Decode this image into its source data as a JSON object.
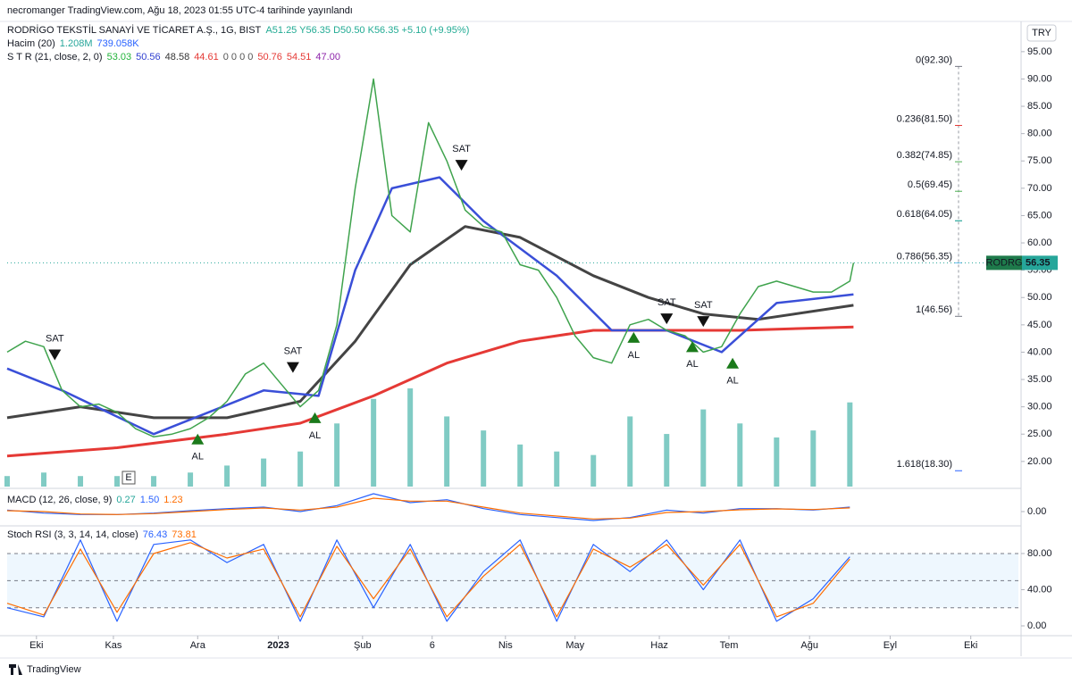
{
  "header": {
    "published": "necromanger TradingView.com, Ağu 18, 2023 01:55 UTC-4 tarihinde yayınlandı",
    "currency": "TRY",
    "footer": "TradingView",
    "event_marker": "E"
  },
  "legend": {
    "symbol": "RODRİGO TEKSTİL SANAYİ VE TİCARET A.Ş., 1G, BIST",
    "ohlc": "A51.25 Y56.35 D50.50 K56.35 +5.10 (+9.95%)",
    "volume_name": "Hacim (20)",
    "volume_values": [
      {
        "text": "1.208M",
        "color": "#26a69a"
      },
      {
        "text": "739.058K",
        "color": "#2962ff"
      }
    ],
    "str_name": "S T R (21, close, 2, 0)",
    "str_values": [
      {
        "text": "53.03",
        "color": "#22b33a"
      },
      {
        "text": "50.56",
        "color": "#2f3fd0"
      },
      {
        "text": "48.58",
        "color": "#333333"
      },
      {
        "text": "44.61",
        "color": "#e53935"
      },
      {
        "text": "0 0 0 0",
        "color": "#555555"
      },
      {
        "text": "50.76",
        "color": "#e53935"
      },
      {
        "text": "54.51",
        "color": "#e53935"
      },
      {
        "text": "47.00",
        "color": "#8e24aa"
      }
    ],
    "macd_name": "MACD (12, 26, close, 9)",
    "macd_values": [
      {
        "text": "0.27",
        "color": "#26a69a"
      },
      {
        "text": "1.50",
        "color": "#2962ff"
      },
      {
        "text": "1.23",
        "color": "#ff6d00"
      }
    ],
    "stoch_name": "Stoch RSI (3, 3, 14, 14, close)",
    "stoch_values": [
      {
        "text": "76.43",
        "color": "#2962ff"
      },
      {
        "text": "73.81",
        "color": "#ff6d00"
      }
    ]
  },
  "chart_data": [
    {
      "type": "line",
      "xlim": [
        0,
        276
      ],
      "ylim": [
        15.4,
        97.1
      ],
      "yticks": [
        {
          "value": 20,
          "label": "20.00"
        },
        {
          "value": 25,
          "label": "25.00"
        },
        {
          "value": 30,
          "label": "30.00"
        },
        {
          "value": 35,
          "label": "35.00"
        },
        {
          "value": 40,
          "label": "40.00"
        },
        {
          "value": 45,
          "label": "45.00"
        },
        {
          "value": 50,
          "label": "50.00"
        },
        {
          "value": 55,
          "label": "55.00"
        },
        {
          "value": 60,
          "label": "60.00"
        },
        {
          "value": 65,
          "label": "65.00"
        },
        {
          "value": 70,
          "label": "70.00"
        },
        {
          "value": 75,
          "label": "75.00"
        },
        {
          "value": 80,
          "label": "80.00"
        },
        {
          "value": 85,
          "label": "85.00"
        },
        {
          "value": 90,
          "label": "90.00"
        },
        {
          "value": 95,
          "label": "95.00"
        }
      ],
      "series": [
        {
          "color": "#e53935",
          "width": 3,
          "x": [
            0,
            30,
            60,
            80,
            100,
            120,
            140,
            160,
            180,
            200,
            231
          ],
          "values": [
            21,
            22.5,
            25,
            27,
            32,
            38,
            42,
            44,
            44,
            44,
            44.61
          ]
        },
        {
          "color": "#444444",
          "width": 3,
          "x": [
            0,
            20,
            40,
            60,
            80,
            95,
            110,
            125,
            140,
            160,
            175,
            190,
            205,
            231
          ],
          "values": [
            28,
            30,
            28,
            28,
            31,
            42,
            56,
            63,
            61,
            54,
            50,
            47,
            46,
            48.58
          ]
        },
        {
          "color": "#3a4fd8",
          "width": 2.5,
          "x": [
            0,
            15,
            40,
            70,
            85,
            95,
            105,
            118,
            130,
            150,
            165,
            180,
            195,
            210,
            231
          ],
          "values": [
            37,
            33,
            25,
            33,
            32,
            55,
            70,
            72,
            64,
            54,
            44,
            44,
            40,
            49,
            50.56
          ]
        },
        {
          "color": "#3fa34d",
          "width": 1.5,
          "x": [
            0,
            5,
            10,
            15,
            20,
            25,
            30,
            35,
            40,
            45,
            50,
            55,
            60,
            65,
            70,
            75,
            80,
            85,
            90,
            95,
            100,
            105,
            110,
            115,
            120,
            125,
            130,
            135,
            140,
            145,
            150,
            155,
            160,
            165,
            170,
            175,
            180,
            185,
            190,
            195,
            200,
            205,
            210,
            215,
            220,
            225,
            230,
            231
          ],
          "values": [
            40,
            42,
            41,
            33,
            30,
            30.5,
            29,
            26,
            24.5,
            25,
            26,
            28,
            31,
            36,
            38,
            34,
            30,
            33,
            45,
            70,
            90,
            65,
            62,
            82,
            75,
            66,
            63,
            62,
            56,
            55,
            50,
            43,
            39,
            38,
            45,
            46,
            44,
            43,
            40,
            41,
            47,
            52,
            53,
            52,
            51,
            51,
            53,
            56.35
          ]
        }
      ],
      "volume": {
        "color": "#80cbc4",
        "x": [
          0,
          10,
          20,
          30,
          40,
          50,
          60,
          70,
          80,
          90,
          100,
          110,
          120,
          130,
          140,
          150,
          160,
          170,
          180,
          190,
          200,
          210,
          220,
          230
        ],
        "values": [
          0.3,
          0.4,
          0.3,
          0.3,
          0.3,
          0.4,
          0.6,
          0.8,
          1.0,
          1.8,
          2.5,
          2.8,
          2.0,
          1.6,
          1.2,
          1.0,
          0.9,
          2.0,
          1.5,
          2.2,
          1.8,
          1.4,
          1.6,
          2.4
        ]
      },
      "fib": [
        {
          "label": "0(92.30)",
          "value": 92.3,
          "color": "#787b86"
        },
        {
          "label": "0.236(81.50)",
          "value": 81.5,
          "color": "#e53935"
        },
        {
          "label": "0.382(74.85)",
          "value": 74.85,
          "color": "#4caf50"
        },
        {
          "label": "0.5(69.45)",
          "value": 69.45,
          "color": "#4caf50"
        },
        {
          "label": "0.618(64.05)",
          "value": 64.05,
          "color": "#009688"
        },
        {
          "label": "0.786(56.35)",
          "value": 56.35,
          "color": "#64b5f6"
        },
        {
          "label": "1(46.56)",
          "value": 46.56,
          "color": "#787b86"
        },
        {
          "label": "1.618(18.30)",
          "value": 18.3,
          "color": "#2962ff"
        }
      ],
      "signals": [
        {
          "label": "SAT",
          "x": 13,
          "value": 39.5
        },
        {
          "label": "SAT",
          "x": 78,
          "value": 37.2
        },
        {
          "label": "SAT",
          "x": 124,
          "value": 74.2
        },
        {
          "label": "SAT",
          "x": 180,
          "value": 46.1
        },
        {
          "label": "SAT",
          "x": 190,
          "value": 45.6
        },
        {
          "label": "AL",
          "x": 52,
          "value": 24.1
        },
        {
          "label": "AL",
          "x": 84,
          "value": 28
        },
        {
          "label": "AL",
          "x": 171,
          "value": 42.7
        },
        {
          "label": "AL",
          "x": 187,
          "value": 41
        },
        {
          "label": "AL",
          "x": 198,
          "value": 38
        }
      ],
      "price_tag": {
        "symbol": "RODRG",
        "value": 56.35
      }
    },
    {
      "type": "line",
      "xlim": [
        0,
        276
      ],
      "ylim": [
        -4.5,
        7.5
      ],
      "yticks": [
        {
          "value": 0,
          "label": "0.00"
        }
      ],
      "series": [
        {
          "color": "#2962ff",
          "width": 1.2,
          "x": [
            0,
            10,
            20,
            30,
            40,
            50,
            60,
            70,
            80,
            90,
            100,
            110,
            120,
            130,
            140,
            150,
            160,
            170,
            180,
            190,
            200,
            210,
            220,
            230
          ],
          "values": [
            0.5,
            -0.5,
            -1,
            -1,
            -0.5,
            0.3,
            1,
            1.5,
            0,
            2,
            6,
            3,
            4,
            1,
            -1,
            -2,
            -3,
            -2,
            0.5,
            -0.5,
            1,
            1,
            0.5,
            1.5
          ]
        },
        {
          "color": "#ff6d00",
          "width": 1.2,
          "x": [
            0,
            10,
            20,
            30,
            40,
            50,
            60,
            70,
            80,
            90,
            100,
            110,
            120,
            130,
            140,
            150,
            160,
            170,
            180,
            190,
            200,
            210,
            220,
            230
          ],
          "values": [
            0.3,
            0,
            -0.8,
            -1,
            -0.7,
            0,
            0.7,
            1.2,
            0.5,
            1.5,
            4.5,
            3.5,
            3.5,
            1.5,
            -0.5,
            -1.5,
            -2.5,
            -2.2,
            -0.3,
            0,
            0.6,
            0.9,
            0.7,
            1.23
          ]
        }
      ]
    },
    {
      "type": "line",
      "xlim": [
        0,
        276
      ],
      "ylim": [
        -8.9,
        109.6
      ],
      "yticks": [
        {
          "value": 0,
          "label": "0.00"
        },
        {
          "value": 40,
          "label": "40.00"
        },
        {
          "value": 80,
          "label": "80.00"
        }
      ],
      "hlines": [
        80,
        50,
        20
      ],
      "xticks": [
        {
          "value": 8,
          "label": "Eki"
        },
        {
          "value": 29,
          "label": "Kas"
        },
        {
          "value": 52,
          "label": "Ara"
        },
        {
          "value": 74,
          "label": "2023"
        },
        {
          "value": 97,
          "label": "Şub"
        },
        {
          "value": 116,
          "label": "6"
        },
        {
          "value": 136,
          "label": "Nis"
        },
        {
          "value": 155,
          "label": "May"
        },
        {
          "value": 178,
          "label": "Haz"
        },
        {
          "value": 197,
          "label": "Tem"
        },
        {
          "value": 219,
          "label": "Ağu"
        },
        {
          "value": 241,
          "label": "Eyl"
        },
        {
          "value": 263,
          "label": "Eki"
        }
      ],
      "series": [
        {
          "color": "#2962ff",
          "width": 1.2,
          "x": [
            0,
            10,
            20,
            30,
            40,
            50,
            60,
            70,
            80,
            90,
            100,
            110,
            120,
            130,
            140,
            150,
            160,
            170,
            180,
            190,
            200,
            210,
            220,
            230
          ],
          "values": [
            20,
            10,
            95,
            5,
            90,
            95,
            70,
            90,
            5,
            95,
            20,
            90,
            5,
            60,
            95,
            5,
            90,
            60,
            95,
            40,
            95,
            5,
            30,
            76.43
          ]
        },
        {
          "color": "#ff6d00",
          "width": 1.2,
          "x": [
            0,
            10,
            20,
            30,
            40,
            50,
            60,
            70,
            80,
            90,
            100,
            110,
            120,
            130,
            140,
            150,
            160,
            170,
            180,
            190,
            200,
            210,
            220,
            230
          ],
          "values": [
            25,
            12,
            85,
            15,
            80,
            92,
            75,
            85,
            10,
            88,
            30,
            85,
            10,
            55,
            90,
            10,
            85,
            65,
            90,
            45,
            90,
            10,
            25,
            73.81
          ]
        }
      ]
    }
  ]
}
